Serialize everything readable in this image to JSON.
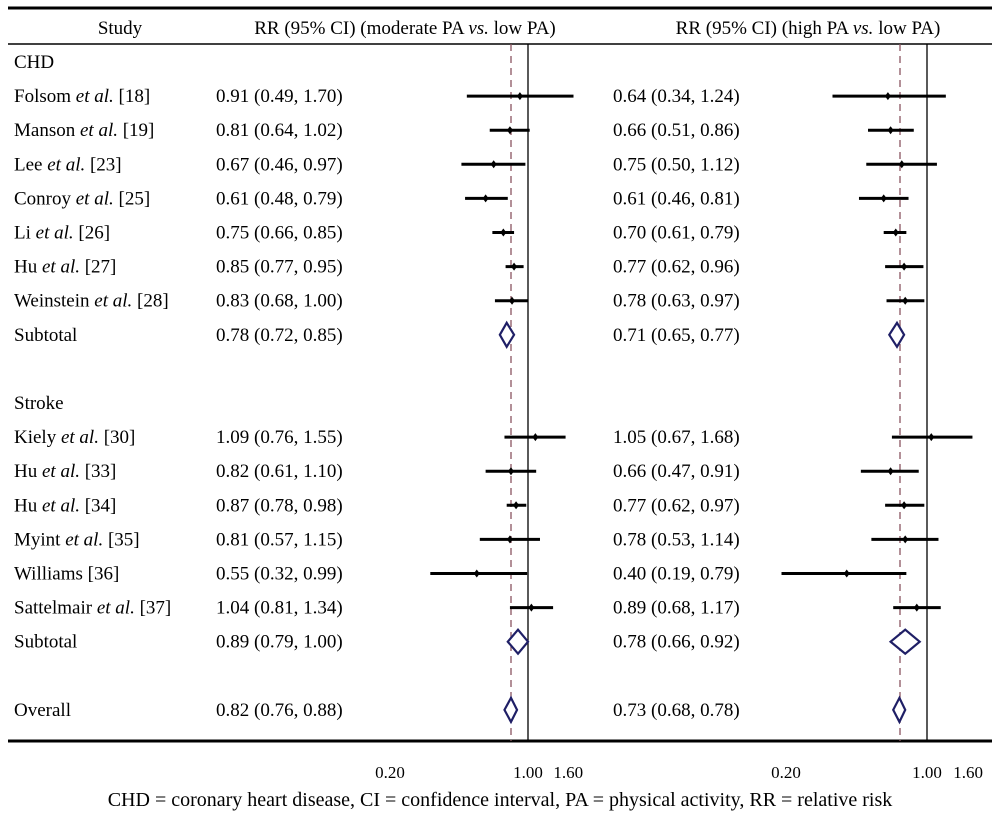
{
  "chart_data": {
    "type": "forest",
    "headers": {
      "study": "Study",
      "left": {
        "before": "RR (95% CI) (moderate PA ",
        "vs": "vs.",
        "after": " low PA)"
      },
      "right": {
        "before": "RR (95% CI) (high PA ",
        "vs": "vs.",
        "after": " low PA)"
      }
    },
    "scale": "log",
    "reference_line": 1.0,
    "xlim": [
      0.2,
      1.6
    ],
    "ticks": [
      "0.20",
      "1.00",
      "1.60"
    ],
    "tick_values": [
      0.2,
      1.0,
      1.6
    ],
    "rows": [
      {
        "type": "group",
        "label": "CHD"
      },
      {
        "type": "study",
        "label": "Folsom et al. [18]",
        "parts": [
          "Folsom",
          " et al.",
          " [18]"
        ],
        "left": {
          "text": "0.91 (0.49, 1.70)",
          "est": 0.91,
          "lo": 0.49,
          "hi": 1.7
        },
        "right": {
          "text": "0.64 (0.34, 1.24)",
          "est": 0.64,
          "lo": 0.34,
          "hi": 1.24
        }
      },
      {
        "type": "study",
        "label": "Manson et al. [19]",
        "parts": [
          "Manson",
          " et al.",
          " [19]"
        ],
        "left": {
          "text": "0.81 (0.64, 1.02)",
          "est": 0.81,
          "lo": 0.64,
          "hi": 1.02
        },
        "right": {
          "text": "0.66 (0.51, 0.86)",
          "est": 0.66,
          "lo": 0.51,
          "hi": 0.86
        }
      },
      {
        "type": "study",
        "label": "Lee et al. [23]",
        "parts": [
          "Lee",
          " et al.",
          " [23]"
        ],
        "left": {
          "text": "0.67 (0.46, 0.97)",
          "est": 0.67,
          "lo": 0.46,
          "hi": 0.97
        },
        "right": {
          "text": "0.75 (0.50, 1.12)",
          "est": 0.75,
          "lo": 0.5,
          "hi": 1.12
        }
      },
      {
        "type": "study",
        "label": "Conroy et al. [25]",
        "parts": [
          "Conroy",
          " et al.",
          " [25]"
        ],
        "left": {
          "text": "0.61 (0.48, 0.79)",
          "est": 0.61,
          "lo": 0.48,
          "hi": 0.79
        },
        "right": {
          "text": "0.61 (0.46, 0.81)",
          "est": 0.61,
          "lo": 0.46,
          "hi": 0.81
        }
      },
      {
        "type": "study",
        "label": "Li et al. [26]",
        "parts": [
          "Li",
          " et al.",
          " [26]"
        ],
        "left": {
          "text": "0.75 (0.66, 0.85)",
          "est": 0.75,
          "lo": 0.66,
          "hi": 0.85
        },
        "right": {
          "text": "0.70 (0.61, 0.79)",
          "est": 0.7,
          "lo": 0.61,
          "hi": 0.79
        }
      },
      {
        "type": "study",
        "label": "Hu et al. [27]",
        "parts": [
          "Hu",
          " et al.",
          " [27]"
        ],
        "left": {
          "text": "0.85 (0.77, 0.95)",
          "est": 0.85,
          "lo": 0.77,
          "hi": 0.95
        },
        "right": {
          "text": "0.77 (0.62, 0.96)",
          "est": 0.77,
          "lo": 0.62,
          "hi": 0.96
        }
      },
      {
        "type": "study",
        "label": "Weinstein et al. [28]",
        "parts": [
          "Weinstein",
          " et al.",
          " [28]"
        ],
        "left": {
          "text": "0.83 (0.68, 1.00)",
          "est": 0.83,
          "lo": 0.68,
          "hi": 1.0
        },
        "right": {
          "text": "0.78 (0.63, 0.97)",
          "est": 0.78,
          "lo": 0.63,
          "hi": 0.97
        }
      },
      {
        "type": "subtotal",
        "label": "Subtotal",
        "left": {
          "text": "0.78 (0.72, 0.85)",
          "est": 0.78,
          "lo": 0.72,
          "hi": 0.85
        },
        "right": {
          "text": "0.71 (0.65, 0.77)",
          "est": 0.71,
          "lo": 0.65,
          "hi": 0.77
        }
      },
      {
        "type": "spacer"
      },
      {
        "type": "group",
        "label": "Stroke"
      },
      {
        "type": "study",
        "label": "Kiely et al. [30]",
        "parts": [
          "Kiely",
          " et al.",
          " [30]"
        ],
        "left": {
          "text": "1.09 (0.76, 1.55)",
          "est": 1.09,
          "lo": 0.76,
          "hi": 1.55
        },
        "right": {
          "text": "1.05 (0.67, 1.68)",
          "est": 1.05,
          "lo": 0.67,
          "hi": 1.68
        }
      },
      {
        "type": "study",
        "label": "Hu et al. [33]",
        "parts": [
          "Hu",
          " et al.",
          " [33]"
        ],
        "left": {
          "text": "0.82 (0.61, 1.10)",
          "est": 0.82,
          "lo": 0.61,
          "hi": 1.1
        },
        "right": {
          "text": "0.66 (0.47, 0.91)",
          "est": 0.66,
          "lo": 0.47,
          "hi": 0.91
        }
      },
      {
        "type": "study",
        "label": "Hu et al. [34]",
        "parts": [
          "Hu",
          " et al.",
          " [34]"
        ],
        "left": {
          "text": "0.87 (0.78, 0.98)",
          "est": 0.87,
          "lo": 0.78,
          "hi": 0.98
        },
        "right": {
          "text": "0.77 (0.62, 0.97)",
          "est": 0.77,
          "lo": 0.62,
          "hi": 0.97
        }
      },
      {
        "type": "study",
        "label": "Myint et al. [35]",
        "parts": [
          "Myint",
          " et al.",
          " [35]"
        ],
        "left": {
          "text": "0.81 (0.57, 1.15)",
          "est": 0.81,
          "lo": 0.57,
          "hi": 1.15
        },
        "right": {
          "text": "0.78 (0.53, 1.14)",
          "est": 0.78,
          "lo": 0.53,
          "hi": 1.14
        }
      },
      {
        "type": "study",
        "label": "Williams [36]",
        "parts": [
          "Williams [36]",
          "",
          ""
        ],
        "left": {
          "text": "0.55 (0.32, 0.99)",
          "est": 0.55,
          "lo": 0.32,
          "hi": 0.99
        },
        "right": {
          "text": "0.40 (0.19, 0.79)",
          "est": 0.4,
          "lo": 0.19,
          "hi": 0.79
        }
      },
      {
        "type": "study",
        "label": "Sattelmair et al. [37]",
        "parts": [
          "Sattelmair",
          " et al.",
          " [37]"
        ],
        "left": {
          "text": "1.04 (0.81, 1.34)",
          "est": 1.04,
          "lo": 0.81,
          "hi": 1.34
        },
        "right": {
          "text": "0.89 (0.68, 1.17)",
          "est": 0.89,
          "lo": 0.68,
          "hi": 1.17
        }
      },
      {
        "type": "subtotal",
        "label": "Subtotal",
        "left": {
          "text": "0.89 (0.79, 1.00)",
          "est": 0.89,
          "lo": 0.79,
          "hi": 1.0
        },
        "right": {
          "text": "0.78 (0.66, 0.92)",
          "est": 0.78,
          "lo": 0.66,
          "hi": 0.92
        }
      },
      {
        "type": "spacer"
      },
      {
        "type": "subtotal",
        "label": "Overall",
        "left": {
          "text": "0.82 (0.76, 0.88)",
          "est": 0.82,
          "lo": 0.76,
          "hi": 0.88
        },
        "right": {
          "text": "0.73 (0.68, 0.78)",
          "est": 0.73,
          "lo": 0.68,
          "hi": 0.78
        }
      }
    ],
    "colors": {
      "line": "#000000",
      "diamond": "#1f1f66",
      "dashed": "#8a5560"
    }
  },
  "caption": "CHD = coronary heart disease, CI = confidence interval, PA = physical activity, RR = relative risk"
}
